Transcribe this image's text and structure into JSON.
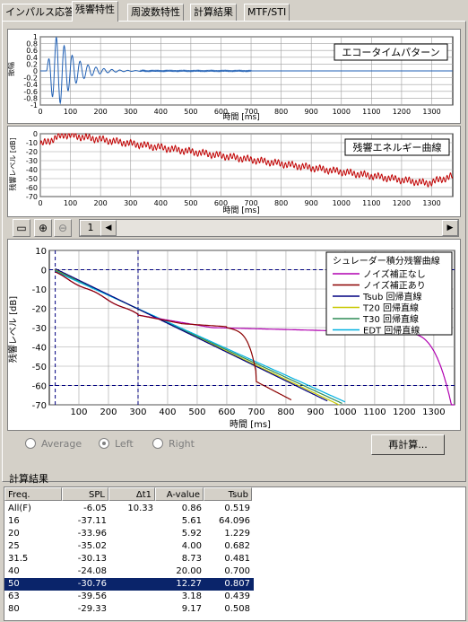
{
  "tabs": [
    "インパルス応答",
    "残響特性",
    "周波数特性",
    "計算結果",
    "MTF/STI"
  ],
  "active_tab_index": 1,
  "plot1": {
    "legend": "エコータイムパターン",
    "ylabel": "振幅",
    "xlabel": "時間 [ms]",
    "yticks": [
      "1",
      "0.8",
      "0.6",
      "0.4",
      "0.2",
      "0",
      "-0.2",
      "-0.4",
      "-0.6",
      "-0.8",
      "-1"
    ],
    "xticks": [
      "0",
      "100",
      "200",
      "300",
      "400",
      "500",
      "600",
      "700",
      "800",
      "900",
      "1000",
      "1100",
      "1200",
      "1300"
    ]
  },
  "plot2": {
    "legend": "残響エネルギー曲線",
    "ylabel": "残響レベル [dB]",
    "xlabel": "時間 [ms]",
    "yticks": [
      "0",
      "-10",
      "-20",
      "-30",
      "-40",
      "-50",
      "-60",
      "-70"
    ],
    "xticks": [
      "0",
      "100",
      "200",
      "300",
      "400",
      "500",
      "600",
      "700",
      "800",
      "900",
      "1000",
      "1100",
      "1200",
      "1300"
    ]
  },
  "toolbar": {
    "page_value": "1"
  },
  "plot3": {
    "ylabel": "残響レベル [dB]",
    "xlabel": "時間 [ms]",
    "yticks": [
      "10",
      "0",
      "-10",
      "-20",
      "-30",
      "-40",
      "-50",
      "-60",
      "-70"
    ],
    "xticks": [
      "100",
      "200",
      "300",
      "400",
      "500",
      "600",
      "700",
      "800",
      "900",
      "1000",
      "1100",
      "1200",
      "1300"
    ],
    "legend_title": "シュレーダー積分残響曲線",
    "legend_items": [
      {
        "label": "ノイズ補正なし",
        "color": "#b000b0"
      },
      {
        "label": "ノイズ補正あり",
        "color": "#8b0000"
      },
      {
        "label": "Tsub 回帰直線",
        "color": "#000080"
      },
      {
        "label": "T20 回帰直線",
        "color": "#c8c800"
      },
      {
        "label": "T30 回帰直線",
        "color": "#2e8b57"
      },
      {
        "label": "EDT 回帰直線",
        "color": "#00b0e0"
      }
    ]
  },
  "radios": {
    "average": "Average",
    "left": "Left",
    "right": "Right"
  },
  "recalc_button": "再計算...",
  "results_label": "計算結果",
  "table": {
    "headers": [
      "Freq.",
      "SPL",
      "Δt1",
      "A-value",
      "Tsub"
    ],
    "rows": [
      [
        "All(F)",
        "-6.05",
        "10.33",
        "0.86",
        "0.519"
      ],
      [
        "16",
        "-37.11",
        "",
        "5.61",
        "64.096"
      ],
      [
        "20",
        "-33.96",
        "",
        "5.92",
        "1.229"
      ],
      [
        "25",
        "-35.02",
        "",
        "4.00",
        "0.682"
      ],
      [
        "31.5",
        "-30.13",
        "",
        "8.73",
        "0.481"
      ],
      [
        "40",
        "-24.08",
        "",
        "20.00",
        "0.700"
      ],
      [
        "50",
        "-30.76",
        "",
        "12.27",
        "0.807"
      ],
      [
        "63",
        "-39.56",
        "",
        "3.18",
        "0.439"
      ],
      [
        "80",
        "-29.33",
        "",
        "9.17",
        "0.508"
      ]
    ],
    "selected_row": 6
  }
}
